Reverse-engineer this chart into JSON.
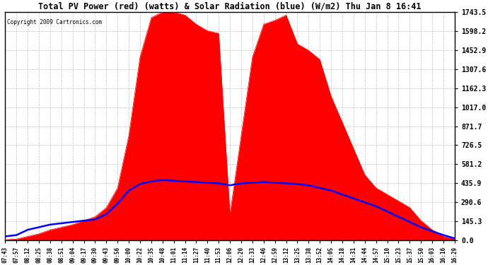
{
  "title": "Total PV Power (red) (watts) & Solar Radiation (blue) (W/m2) Thu Jan 8 16:41",
  "copyright": "Copyright 2009 Cartronics.com",
  "yticks": [
    0.0,
    145.3,
    290.6,
    435.9,
    581.2,
    726.5,
    871.7,
    1017.0,
    1162.3,
    1307.6,
    1452.9,
    1598.2,
    1743.5
  ],
  "ymax": 1743.5,
  "ymin": 0.0,
  "bg_color": "#ffffff",
  "plot_bg_color": "#ffffff",
  "grid_color": "#bbbbbb",
  "red_color": "#ff0000",
  "blue_color": "#0000ff",
  "xtick_labels": [
    "07:43",
    "07:57",
    "08:12",
    "08:25",
    "08:38",
    "08:51",
    "09:04",
    "09:17",
    "09:30",
    "09:43",
    "09:56",
    "10:09",
    "10:22",
    "10:35",
    "10:48",
    "11:01",
    "11:14",
    "11:27",
    "11:40",
    "11:53",
    "12:06",
    "12:20",
    "12:33",
    "12:46",
    "12:59",
    "13:12",
    "13:25",
    "13:38",
    "13:52",
    "14:05",
    "14:18",
    "14:31",
    "14:44",
    "14:57",
    "15:10",
    "15:23",
    "15:37",
    "15:50",
    "16:03",
    "16:16",
    "16:29"
  ],
  "pv_watts": [
    5,
    10,
    30,
    50,
    80,
    100,
    120,
    150,
    180,
    250,
    400,
    800,
    1400,
    1700,
    1743,
    1743,
    1720,
    1650,
    1600,
    1580,
    200,
    800,
    1400,
    1650,
    1680,
    1720,
    1500,
    1450,
    1380,
    1100,
    900,
    700,
    500,
    400,
    350,
    300,
    250,
    150,
    80,
    30,
    10
  ],
  "solar_wm2": [
    30,
    40,
    80,
    100,
    120,
    130,
    140,
    150,
    160,
    200,
    280,
    380,
    430,
    450,
    460,
    455,
    450,
    445,
    440,
    435,
    420,
    435,
    440,
    445,
    440,
    435,
    430,
    420,
    400,
    380,
    350,
    320,
    290,
    260,
    220,
    180,
    140,
    100,
    70,
    40,
    15
  ]
}
